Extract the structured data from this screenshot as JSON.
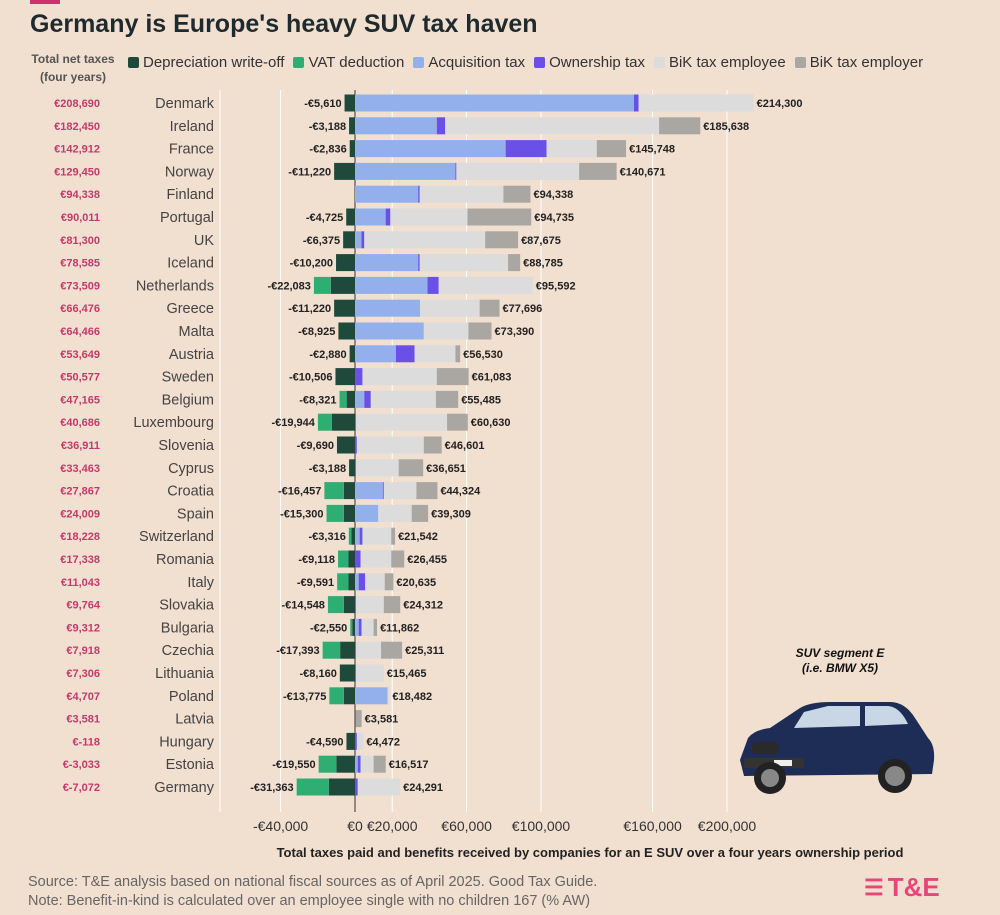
{
  "title": "Germany is Europe's heavy SUV tax haven",
  "net_header": "Total net taxes (four years)",
  "colors": {
    "depreciation": "#1f4a3b",
    "vat": "#2fae74",
    "acquisition": "#93b0ec",
    "ownership": "#6b50e8",
    "bik_employee": "#dcdcdc",
    "bik_employer": "#aaa6a2",
    "net": "#c43a6c",
    "accent": "#e8457a"
  },
  "legend": [
    {
      "label": "Depreciation write-off",
      "color_key": "depreciation"
    },
    {
      "label": "VAT deduction",
      "color_key": "vat"
    },
    {
      "label": "Acquisition tax",
      "color_key": "acquisition"
    },
    {
      "label": "Ownership tax",
      "color_key": "ownership"
    },
    {
      "label": "BiK tax employee",
      "color_key": "bik_employee"
    },
    {
      "label": "BiK tax employer",
      "color_key": "bik_employer"
    }
  ],
  "chart_data": {
    "type": "bar",
    "orientation": "horizontal",
    "stacked": true,
    "xlabel": "Total taxes paid and benefits received by companies for an E SUV over a four years ownership period",
    "xlim": [
      -45000,
      225000
    ],
    "x_ticks": [
      {
        "value": -40000,
        "label": "-€40,000"
      },
      {
        "value": 0,
        "label": "€0"
      },
      {
        "value": 20000,
        "label": "€20,000"
      },
      {
        "value": 60000,
        "label": "€60,000"
      },
      {
        "value": 100000,
        "label": "€100,000"
      },
      {
        "value": 160000,
        "label": "€160,000"
      },
      {
        "value": 200000,
        "label": "€200,000"
      }
    ],
    "series_order": [
      "depreciation",
      "vat",
      "acquisition",
      "ownership",
      "bik_employee",
      "bik_employer"
    ],
    "rows": [
      {
        "country": "Denmark",
        "net": "€208,690",
        "neg_label": "-€5,610",
        "pos_label": "€214,300",
        "depreciation": -5610,
        "vat": 0,
        "acquisition": 150000,
        "ownership": 2500,
        "bik_employee": 61800,
        "bik_employer": 0
      },
      {
        "country": "Ireland",
        "net": "€182,450",
        "neg_label": "-€3,188",
        "pos_label": "€185,638",
        "depreciation": -3188,
        "vat": 0,
        "acquisition": 44000,
        "ownership": 4500,
        "bik_employee": 115000,
        "bik_employer": 22138
      },
      {
        "country": "France",
        "net": "€142,912",
        "neg_label": "-€2,836",
        "pos_label": "€145,748",
        "depreciation": -2836,
        "vat": 0,
        "acquisition": 81000,
        "ownership": 22000,
        "bik_employee": 27000,
        "bik_employer": 15748
      },
      {
        "country": "Norway",
        "net": "€129,450",
        "neg_label": "-€11,220",
        "pos_label": "€140,671",
        "depreciation": -11220,
        "vat": 0,
        "acquisition": 54000,
        "ownership": 500,
        "bik_employee": 66000,
        "bik_employer": 20171
      },
      {
        "country": "Finland",
        "net": "€94,338",
        "neg_label": "",
        "pos_label": "€94,338",
        "depreciation": 0,
        "vat": 0,
        "acquisition": 34000,
        "ownership": 800,
        "bik_employee": 45000,
        "bik_employer": 14538
      },
      {
        "country": "Portugal",
        "net": "€90,011",
        "neg_label": "-€4,725",
        "pos_label": "€94,735",
        "depreciation": -4725,
        "vat": 0,
        "acquisition": 16500,
        "ownership": 2500,
        "bik_employee": 41500,
        "bik_employer": 34235
      },
      {
        "country": "UK",
        "net": "€81,300",
        "neg_label": "-€6,375",
        "pos_label": "€87,675",
        "depreciation": -6375,
        "vat": 0,
        "acquisition": 3500,
        "ownership": 1500,
        "bik_employee": 65000,
        "bik_employer": 17675
      },
      {
        "country": "Iceland",
        "net": "€78,585",
        "neg_label": "-€10,200",
        "pos_label": "€88,785",
        "depreciation": -10200,
        "vat": 0,
        "acquisition": 34000,
        "ownership": 800,
        "bik_employee": 47500,
        "bik_employer": 6485
      },
      {
        "country": "Netherlands",
        "net": "€73,509",
        "neg_label": "-€22,083",
        "pos_label": "€95,592",
        "depreciation": -13000,
        "vat": -9083,
        "acquisition": 39000,
        "ownership": 6000,
        "bik_employee": 50592,
        "bik_employer": 0
      },
      {
        "country": "Greece",
        "net": "€66,476",
        "neg_label": "-€11,220",
        "pos_label": "€77,696",
        "depreciation": -11220,
        "vat": 0,
        "acquisition": 35000,
        "ownership": 0,
        "bik_employee": 32000,
        "bik_employer": 10696
      },
      {
        "country": "Malta",
        "net": "€64,466",
        "neg_label": "-€8,925",
        "pos_label": "€73,390",
        "depreciation": -8925,
        "vat": 0,
        "acquisition": 37000,
        "ownership": 0,
        "bik_employee": 24000,
        "bik_employer": 12390
      },
      {
        "country": "Austria",
        "net": "€53,649",
        "neg_label": "-€2,880",
        "pos_label": "€56,530",
        "depreciation": -2880,
        "vat": 0,
        "acquisition": 22000,
        "ownership": 10000,
        "bik_employee": 22000,
        "bik_employer": 2530
      },
      {
        "country": "Sweden",
        "net": "€50,577",
        "neg_label": "-€10,506",
        "pos_label": "€61,083",
        "depreciation": -10506,
        "vat": 0,
        "acquisition": 0,
        "ownership": 4000,
        "bik_employee": 40000,
        "bik_employer": 17083
      },
      {
        "country": "Belgium",
        "net": "€47,165",
        "neg_label": "-€8,321",
        "pos_label": "€55,485",
        "depreciation": -4500,
        "vat": -3821,
        "acquisition": 5000,
        "ownership": 3500,
        "bik_employee": 35000,
        "bik_employer": 11985
      },
      {
        "country": "Luxembourg",
        "net": "€40,686",
        "neg_label": "-€19,944",
        "pos_label": "€60,630",
        "depreciation": -12500,
        "vat": -7444,
        "acquisition": 0,
        "ownership": 500,
        "bik_employee": 49000,
        "bik_employer": 11130
      },
      {
        "country": "Slovenia",
        "net": "€36,911",
        "neg_label": "-€9,690",
        "pos_label": "€46,601",
        "depreciation": -9690,
        "vat": 0,
        "acquisition": 0,
        "ownership": 1000,
        "bik_employee": 36000,
        "bik_employer": 9601
      },
      {
        "country": "Cyprus",
        "net": "€33,463",
        "neg_label": "-€3,188",
        "pos_label": "€36,651",
        "depreciation": -3188,
        "vat": 0,
        "acquisition": 0,
        "ownership": 500,
        "bik_employee": 23000,
        "bik_employer": 13151
      },
      {
        "country": "Croatia",
        "net": "€27,867",
        "neg_label": "-€16,457",
        "pos_label": "€44,324",
        "depreciation": -6000,
        "vat": -10457,
        "acquisition": 15000,
        "ownership": 500,
        "bik_employee": 17500,
        "bik_employer": 11324
      },
      {
        "country": "Spain",
        "net": "€24,009",
        "neg_label": "-€15,300",
        "pos_label": "€39,309",
        "depreciation": -6000,
        "vat": -9300,
        "acquisition": 12500,
        "ownership": 0,
        "bik_employee": 18000,
        "bik_employer": 8809
      },
      {
        "country": "Switzerland",
        "net": "€18,228",
        "neg_label": "-€3,316",
        "pos_label": "€21,542",
        "depreciation": -2000,
        "vat": -1316,
        "acquisition": 2500,
        "ownership": 1500,
        "bik_employee": 15500,
        "bik_employer": 2042
      },
      {
        "country": "Romania",
        "net": "€17,338",
        "neg_label": "-€9,118",
        "pos_label": "€26,455",
        "depreciation": -3500,
        "vat": -5618,
        "acquisition": 0,
        "ownership": 3000,
        "bik_employee": 16500,
        "bik_employer": 6955
      },
      {
        "country": "Italy",
        "net": "€11,043",
        "neg_label": "-€9,591",
        "pos_label": "€20,635",
        "depreciation": -3500,
        "vat": -6091,
        "acquisition": 2000,
        "ownership": 3500,
        "bik_employee": 10500,
        "bik_employer": 4635
      },
      {
        "country": "Slovakia",
        "net": "€9,764",
        "neg_label": "-€14,548",
        "pos_label": "€24,312",
        "depreciation": -6000,
        "vat": -8548,
        "acquisition": 0,
        "ownership": 500,
        "bik_employee": 15000,
        "bik_employer": 8812
      },
      {
        "country": "Bulgaria",
        "net": "€9,312",
        "neg_label": "-€2,550",
        "pos_label": "€11,862",
        "depreciation": -1500,
        "vat": -1050,
        "acquisition": 2000,
        "ownership": 1500,
        "bik_employee": 6500,
        "bik_employer": 1862
      },
      {
        "country": "Czechia",
        "net": "€7,918",
        "neg_label": "-€17,393",
        "pos_label": "€25,311",
        "depreciation": -8000,
        "vat": -9393,
        "acquisition": 0,
        "ownership": 500,
        "bik_employee": 13500,
        "bik_employer": 11311
      },
      {
        "country": "Lithuania",
        "net": "€7,306",
        "neg_label": "-€8,160",
        "pos_label": "€15,465",
        "depreciation": -8160,
        "vat": 0,
        "acquisition": 0,
        "ownership": 500,
        "bik_employee": 14965,
        "bik_employer": 0
      },
      {
        "country": "Poland",
        "net": "€4,707",
        "neg_label": "-€13,775",
        "pos_label": "€18,482",
        "depreciation": -6000,
        "vat": -7775,
        "acquisition": 17500,
        "ownership": 0,
        "bik_employee": 982,
        "bik_employer": 0
      },
      {
        "country": "Latvia",
        "net": "€3,581",
        "neg_label": "",
        "pos_label": "€3,581",
        "depreciation": 0,
        "vat": 0,
        "acquisition": 0,
        "ownership": 500,
        "bik_employee": 0,
        "bik_employer": 3081
      },
      {
        "country": "Hungary",
        "net": "€-118",
        "neg_label": "-€4,590",
        "pos_label": "€4,472",
        "depreciation": -4590,
        "vat": 0,
        "acquisition": 0,
        "ownership": 1000,
        "bik_employee": 3472,
        "bik_employer": 0
      },
      {
        "country": "Estonia",
        "net": "€-3,033",
        "neg_label": "-€19,550",
        "pos_label": "€16,517",
        "depreciation": -10000,
        "vat": -9550,
        "acquisition": 1500,
        "ownership": 1500,
        "bik_employee": 7000,
        "bik_employer": 6517
      },
      {
        "country": "Germany",
        "net": "€-7,072",
        "neg_label": "-€31,363",
        "pos_label": "€24,291",
        "depreciation": -14000,
        "vat": -17363,
        "acquisition": 0,
        "ownership": 1500,
        "bik_employee": 22791,
        "bik_employer": 0
      }
    ]
  },
  "car": {
    "label_line1": "SUV segment E",
    "label_line2": "(i.e. BMW X5)"
  },
  "source_line1": "Source: T&E analysis based on national fiscal sources as of April 2025. Good Tax Guide.",
  "source_line2": "Note: Benefit-in-kind is calculated over an employee single with no children 167 (% AW)",
  "logo_text": "T&E"
}
